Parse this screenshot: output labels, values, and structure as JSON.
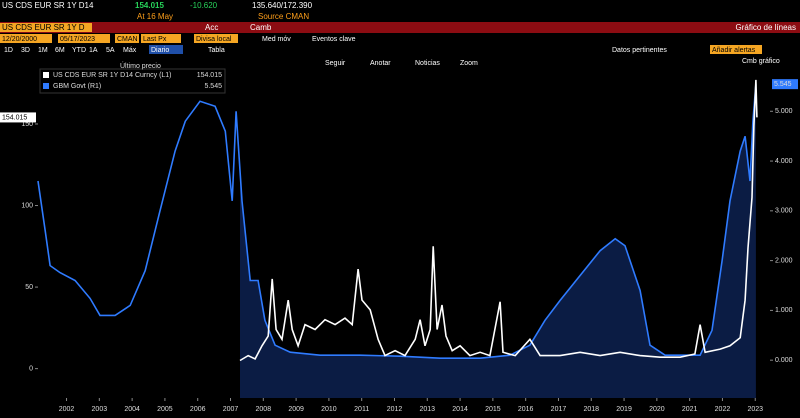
{
  "ui": {
    "header": {
      "ticker": "US CDS EUR SR 1Y D14",
      "price": "154.015",
      "change": "-10.620",
      "range": "135.640/172.390",
      "date": "At 16 May",
      "source": "Source CMAN"
    },
    "toolbar": {
      "security": "US CDS EUR SR 1Y D",
      "acc": "Acc",
      "camb": "Camb",
      "chart_type": "Gráfico de líneas"
    },
    "settings": {
      "start": "12/20/2000",
      "end": "05/17/2023",
      "source": "CMAN",
      "field": "Last Px",
      "currency": "Divisa local",
      "moving_avg": "Med móv",
      "events": "Eventos clave"
    },
    "periods": [
      "1D",
      "3D",
      "1M",
      "6M",
      "YTD",
      "1A",
      "5A",
      "Máx"
    ],
    "frequency": "Diario",
    "table": "Tabla",
    "relevant": "Datos pertinentes",
    "alerts": "Añadir alertas",
    "chart_tools": [
      "Seguir",
      "Anotar",
      "Noticias",
      "Zoom"
    ],
    "chart_settings": "Cmb gráfico"
  },
  "chart_data": {
    "type": "line",
    "legend_title": "Último precio",
    "xlim": [
      2001.63,
      2023.95
    ],
    "xticks": [
      {
        "value": 2002.5,
        "label": "2002"
      },
      {
        "value": 2003.5,
        "label": "2003"
      },
      {
        "value": 2004.5,
        "label": "2004"
      },
      {
        "value": 2005.5,
        "label": "2005"
      },
      {
        "value": 2006.5,
        "label": "2006"
      },
      {
        "value": 2007.5,
        "label": "2007"
      },
      {
        "value": 2008.5,
        "label": "2008"
      },
      {
        "value": 2009.5,
        "label": "2009"
      },
      {
        "value": 2010.5,
        "label": "2010"
      },
      {
        "value": 2011.5,
        "label": "2011"
      },
      {
        "value": 2012.5,
        "label": "2012"
      },
      {
        "value": 2013.5,
        "label": "2013"
      },
      {
        "value": 2014.5,
        "label": "2014"
      },
      {
        "value": 2015.5,
        "label": "2015"
      },
      {
        "value": 2016.5,
        "label": "2016"
      },
      {
        "value": 2017.5,
        "label": "2017"
      },
      {
        "value": 2018.5,
        "label": "2018"
      },
      {
        "value": 2019.5,
        "label": "2019"
      },
      {
        "value": 2020.5,
        "label": "2020"
      },
      {
        "value": 2021.5,
        "label": "2021"
      },
      {
        "value": 2022.5,
        "label": "2022"
      },
      {
        "value": 2023.5,
        "label": "2023"
      }
    ],
    "ylim": [
      -18,
      188
    ],
    "yticks": [
      0,
      50,
      100,
      150
    ],
    "y2lim": [
      -0.76,
      5.99
    ],
    "y2ticks": [
      {
        "value": 0,
        "label": "0.000"
      },
      {
        "value": 1,
        "label": "1.000"
      },
      {
        "value": 2,
        "label": "2.000"
      },
      {
        "value": 3,
        "label": "3.000"
      },
      {
        "value": 4,
        "label": "4.000"
      },
      {
        "value": 5,
        "label": "5.000"
      }
    ],
    "series": [
      {
        "name": "US CDS EUR SR 1Y D14 Curncy (L1)",
        "legend_value": "154.015",
        "color": "#ffffff",
        "axis": "y",
        "x": [
          2007.79,
          2008.04,
          2008.25,
          2008.46,
          2008.65,
          2008.77,
          2008.89,
          2009.07,
          2009.26,
          2009.38,
          2009.56,
          2009.77,
          2010.08,
          2010.38,
          2010.69,
          2010.99,
          2011.21,
          2011.39,
          2011.51,
          2011.76,
          2012.0,
          2012.21,
          2012.52,
          2012.82,
          2013.13,
          2013.28,
          2013.43,
          2013.59,
          2013.68,
          2013.8,
          2013.95,
          2014.07,
          2014.26,
          2014.5,
          2014.8,
          2015.11,
          2015.41,
          2015.72,
          2015.81,
          2016.18,
          2016.63,
          2016.94,
          2017.55,
          2018.16,
          2018.77,
          2019.38,
          2019.99,
          2020.6,
          2021.21,
          2021.66,
          2021.82,
          2021.97,
          2022.43,
          2022.73,
          2023.04,
          2023.19,
          2023.28,
          2023.4,
          2023.46,
          2023.52,
          2023.55
        ],
        "values": [
          5,
          8,
          6,
          14,
          20,
          55,
          24,
          18,
          42,
          24,
          14,
          27,
          24,
          30,
          27,
          31,
          27,
          61,
          42,
          36,
          18,
          8,
          11,
          8,
          18,
          30,
          14,
          24,
          75,
          24,
          39,
          20,
          11,
          14,
          8,
          10,
          8,
          41,
          10,
          8,
          18,
          8,
          8,
          10,
          8,
          10,
          8,
          7,
          7,
          9,
          27,
          10,
          12,
          14,
          19,
          42,
          74,
          105,
          149,
          177,
          154.015
        ]
      },
      {
        "name": "GBM Govt (R1)",
        "legend_value": "5.545",
        "color": "#2f7bff",
        "area_color": "#0b1c44",
        "axis": "y2",
        "x": [
          2001.63,
          2001.76,
          2001.85,
          2002.0,
          2002.3,
          2002.76,
          2003.22,
          2003.52,
          2003.98,
          2004.44,
          2004.9,
          2005.35,
          2005.81,
          2006.12,
          2006.57,
          2007.03,
          2007.34,
          2007.55,
          2007.67,
          2007.85,
          2008.1,
          2008.34,
          2008.55,
          2008.86,
          2009.32,
          2010.23,
          2011.45,
          2012.67,
          2013.89,
          2015.11,
          2016.02,
          2016.63,
          2017.09,
          2017.55,
          2018.16,
          2018.77,
          2019.23,
          2019.53,
          2019.99,
          2020.29,
          2020.75,
          2021.82,
          2022.18,
          2022.49,
          2022.73,
          2023.04,
          2023.19,
          2023.34,
          2023.43,
          2023.52
        ],
        "values": [
          3.6,
          3.0,
          2.6,
          1.9,
          1.76,
          1.6,
          1.24,
          0.9,
          0.9,
          1.1,
          1.8,
          3.0,
          4.2,
          4.8,
          5.2,
          5.1,
          4.6,
          3.2,
          5.0,
          3.2,
          1.6,
          1.6,
          0.8,
          0.3,
          0.16,
          0.1,
          0.1,
          0.08,
          0.04,
          0.04,
          0.1,
          0.3,
          0.8,
          1.2,
          1.7,
          2.2,
          2.44,
          2.3,
          1.4,
          0.3,
          0.1,
          0.1,
          0.6,
          2.0,
          3.2,
          4.2,
          4.5,
          3.6,
          4.8,
          5.545
        ]
      }
    ]
  }
}
